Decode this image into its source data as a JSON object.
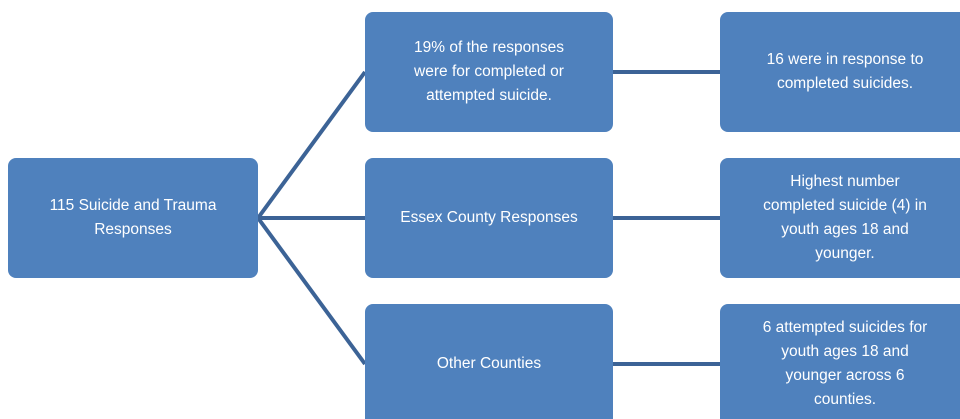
{
  "nodes": [
    {
      "lines": [
        "115 Suicide and Trauma",
        "Responses"
      ]
    },
    {
      "lines": [
        "19% of the responses",
        "were for completed or",
        "attempted suicide."
      ]
    },
    {
      "lines": [
        "Essex County Responses"
      ]
    },
    {
      "lines": [
        "Other Counties"
      ]
    },
    {
      "lines": [
        "16 were in response to",
        "completed suicides."
      ]
    },
    {
      "lines": [
        "Highest number",
        "completed suicide (4) in",
        "youth ages 18 and",
        "younger."
      ]
    },
    {
      "lines": [
        "6 attempted suicides for",
        "youth ages 18 and",
        "younger across 6",
        "counties."
      ]
    }
  ]
}
